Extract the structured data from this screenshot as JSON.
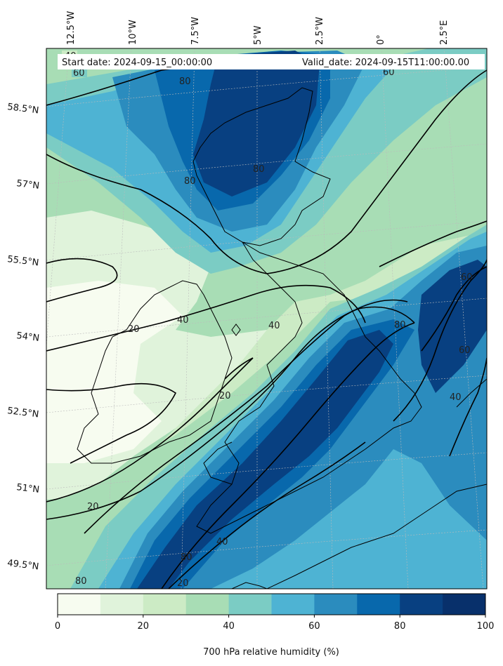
{
  "header": {
    "start_date": "Start date: 2024-09-15_00:00:00",
    "valid_date": "Valid_date: 2024-09-15T11:00:00.00"
  },
  "map": {
    "lon_labels": [
      "12.5°W",
      "10°W",
      "7.5°W",
      "5°W",
      "2.5°W",
      "0°",
      "2.5°E"
    ],
    "lat_labels": [
      "58.5°N",
      "57°N",
      "55.5°N",
      "54°N",
      "52.5°N",
      "51°N",
      "49.5°N"
    ],
    "contour_labels": [
      "40",
      "60",
      "80",
      "80",
      "80",
      "20",
      "40",
      "40",
      "80",
      "60",
      "60",
      "40",
      "20",
      "20",
      "40",
      "80",
      "20",
      "80",
      "60"
    ]
  },
  "colorbar": {
    "ticks": [
      "0",
      "20",
      "40",
      "60",
      "80",
      "100"
    ],
    "title": "700 hPa relative humidity (%)",
    "colors": [
      "#f7fcf0",
      "#e0f3db",
      "#ccebc5",
      "#a8ddb5",
      "#7bccc4",
      "#4eb3d3",
      "#2b8cbe",
      "#0868ac",
      "#084081",
      "#08306b"
    ]
  }
}
